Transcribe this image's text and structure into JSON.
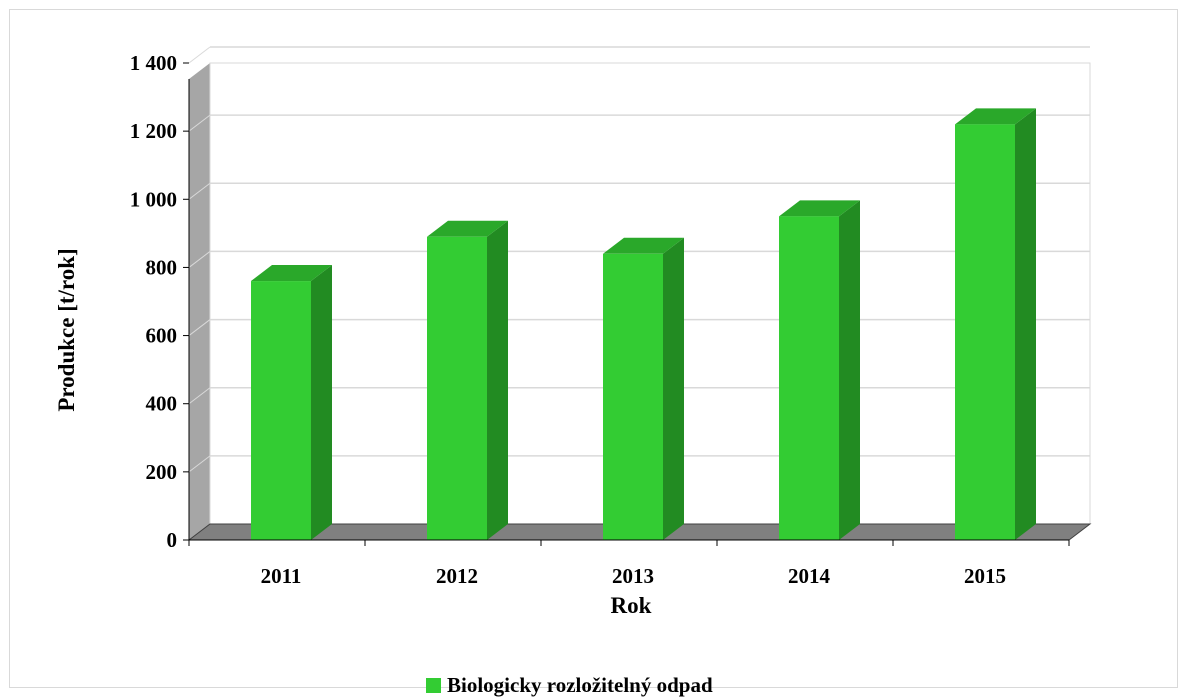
{
  "chart_data": {
    "type": "bar",
    "style": "3d-column",
    "categories": [
      "2011",
      "2012",
      "2013",
      "2014",
      "2015"
    ],
    "series": [
      {
        "name": "Biologicky rozložitelný odpad",
        "values": [
          760,
          890,
          840,
          950,
          1220
        ],
        "color": "#33cc33"
      }
    ],
    "title": "",
    "xlabel": "Rok",
    "ylabel": "Produkce [t/rok]",
    "ylim": [
      0,
      1400
    ],
    "yticks": [
      0,
      200,
      400,
      600,
      800,
      1000,
      1200,
      1400
    ],
    "ytick_labels": [
      "0",
      "200",
      "400",
      "600",
      "800",
      "1 000",
      "1 200",
      "1 400"
    ],
    "grid": true,
    "legend_position": "bottom",
    "colors": {
      "bar_front": "#33cc33",
      "bar_top": "#2aa82a",
      "bar_side": "#228b22",
      "wall_side": "#a6a6a6",
      "floor": "#808080",
      "gridline": "#d9d9d9"
    }
  }
}
